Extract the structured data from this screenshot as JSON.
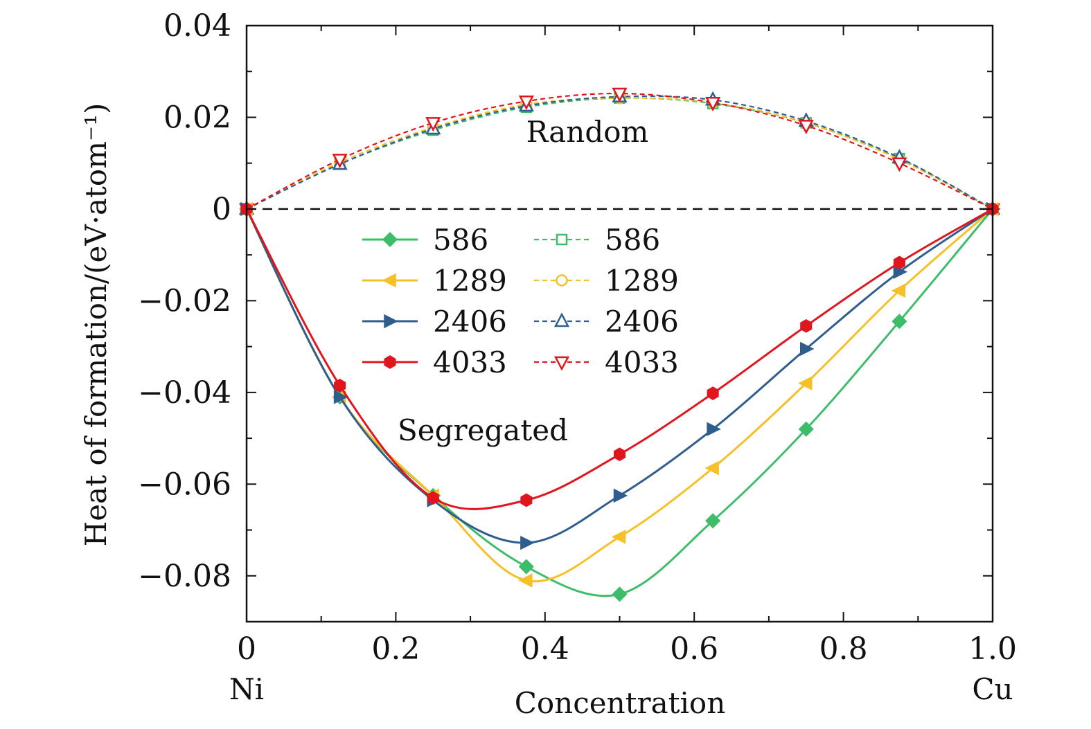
{
  "chart_data": {
    "type": "line",
    "ylabel": "Heat of formation/(eV·atom⁻¹)",
    "xlabel": "Concentration",
    "xlim": [
      0,
      1.0
    ],
    "ylim": [
      -0.09,
      0.04
    ],
    "x_ticks": [
      0,
      0.2,
      0.4,
      0.6,
      0.8,
      1.0
    ],
    "x_tick_labels": [
      "0",
      "0.2",
      "0.4",
      "0.6",
      "0.8",
      "1.0"
    ],
    "y_ticks": [
      0.04,
      0.02,
      0,
      -0.02,
      -0.04,
      -0.06,
      -0.08
    ],
    "y_tick_labels": [
      "0.04",
      "0.02",
      "0",
      "−0.02",
      "−0.04",
      "−0.06",
      "−0.08"
    ],
    "x_end_labels": {
      "left": "Ni",
      "right": "Cu"
    },
    "annotations": [
      "Random",
      "Segregated"
    ],
    "zero_line": true,
    "legend_position": "center-left",
    "x": [
      0,
      0.125,
      0.25,
      0.375,
      0.5,
      0.625,
      0.75,
      0.875,
      1.0
    ],
    "series": [
      {
        "name": "586",
        "group": "segregated",
        "marker": "diamond",
        "line": "solid",
        "color": "#3dbd6a",
        "values": [
          0,
          -0.041,
          -0.0625,
          -0.078,
          -0.084,
          -0.068,
          -0.048,
          -0.0245,
          0
        ]
      },
      {
        "name": "1289",
        "group": "segregated",
        "marker": "triangle-left",
        "line": "solid",
        "color": "#f6c026",
        "values": [
          0,
          -0.041,
          -0.0625,
          -0.081,
          -0.0715,
          -0.0565,
          -0.038,
          -0.0178,
          0
        ]
      },
      {
        "name": "2406",
        "group": "segregated",
        "marker": "triangle-right",
        "line": "solid",
        "color": "#2f5e8e",
        "values": [
          0,
          -0.041,
          -0.0635,
          -0.0728,
          -0.0625,
          -0.048,
          -0.0305,
          -0.0137,
          0
        ]
      },
      {
        "name": "4033",
        "group": "segregated",
        "marker": "hexagon",
        "line": "solid",
        "color": "#e0161f",
        "values": [
          0,
          -0.0385,
          -0.063,
          -0.0635,
          -0.0535,
          -0.0402,
          -0.0255,
          -0.0117,
          0
        ]
      },
      {
        "name": "586",
        "group": "random",
        "marker": "square-open",
        "line": "dashed",
        "color": "#3dbd6a",
        "values": [
          0,
          0.0098,
          0.0172,
          0.0222,
          0.0242,
          0.023,
          0.0188,
          0.011,
          0
        ]
      },
      {
        "name": "1289",
        "group": "random",
        "marker": "circle-open",
        "line": "dashed",
        "color": "#f6c026",
        "values": [
          0,
          0.0102,
          0.0178,
          0.0228,
          0.0242,
          0.0232,
          0.0188,
          0.0108,
          0
        ]
      },
      {
        "name": "2406",
        "group": "random",
        "marker": "triangle-up-open",
        "line": "dashed",
        "color": "#2f5e8e",
        "values": [
          0,
          0.0098,
          0.0175,
          0.0225,
          0.0245,
          0.0238,
          0.0192,
          0.0112,
          0
        ]
      },
      {
        "name": "4033",
        "group": "random",
        "marker": "triangle-down-open",
        "line": "dashed",
        "color": "#e0161f",
        "values": [
          0,
          0.0108,
          0.0188,
          0.0235,
          0.0252,
          0.0232,
          0.0182,
          0.01,
          0
        ]
      }
    ]
  }
}
